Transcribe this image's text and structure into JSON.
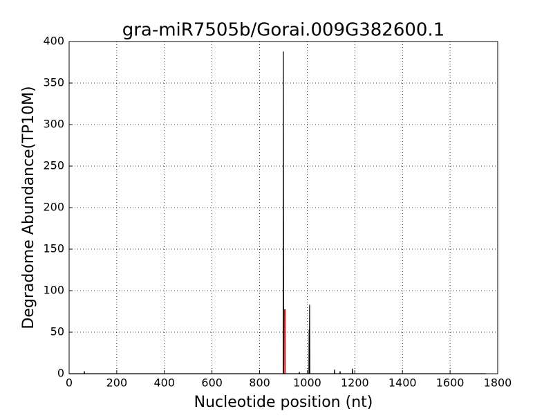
{
  "chart_data": {
    "type": "line",
    "title": "gra-miR7505b/Gorai.009G382600.1",
    "x_label": "Nucleotide position (nt)",
    "y_label": "Degradome Abundance(TP10M)",
    "series": [
      {
        "color": "#000000",
        "x": [
          0,
          63,
          64,
          65,
          899,
          900,
          901,
          966,
          967,
          968,
          1007,
          1008,
          1009,
          1010,
          1011,
          1114,
          1115,
          1116,
          1137,
          1138,
          1139,
          1189,
          1190,
          1191,
          1750
        ],
        "values": [
          0,
          0,
          3,
          0,
          0,
          388,
          0,
          0,
          2,
          0,
          0,
          53,
          0,
          83,
          0,
          0,
          5,
          0,
          0,
          3,
          0,
          0,
          6,
          0,
          0
        ]
      },
      {
        "color": "#cc0000",
        "x": [
          903,
          904,
          908,
          909
        ],
        "values": [
          0,
          77,
          77,
          0
        ]
      }
    ],
    "xlim": [
      0,
      1800
    ],
    "xticks": [
      0,
      200,
      400,
      600,
      800,
      1000,
      1200,
      1400,
      1600,
      1800
    ],
    "ylim": [
      0,
      400
    ],
    "yticks": [
      0,
      50,
      100,
      150,
      200,
      250,
      300,
      350,
      400
    ],
    "grid": true
  }
}
